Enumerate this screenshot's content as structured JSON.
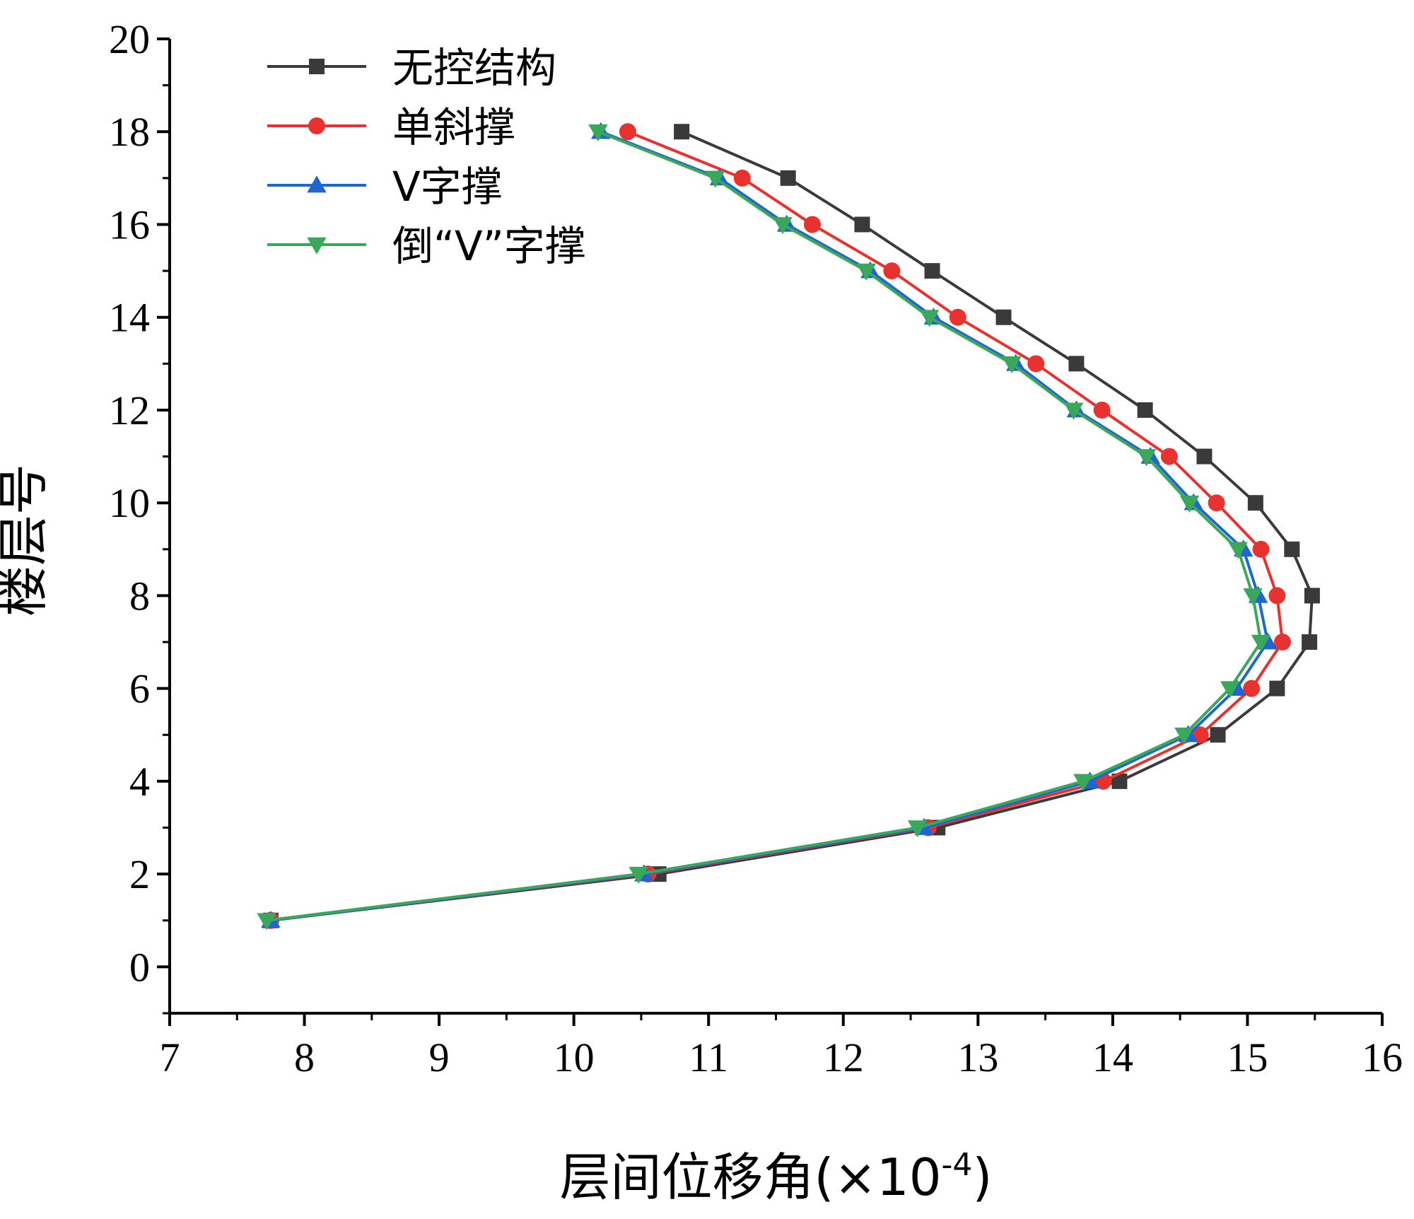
{
  "chart_data": {
    "type": "line",
    "title": "",
    "xlabel": "层间位移角",
    "xlabel_unit": "(×10",
    "xlabel_exp": "-4",
    "xlabel_close": ")",
    "ylabel": "楼层号",
    "xlim": [
      7,
      16
    ],
    "ylim": [
      -1,
      20
    ],
    "xticks": [
      "7",
      "8",
      "9",
      "10",
      "11",
      "12",
      "13",
      "14",
      "15",
      "16"
    ],
    "yticks": [
      "0",
      "2",
      "4",
      "6",
      "8",
      "10",
      "12",
      "14",
      "16",
      "18",
      "20"
    ],
    "legend_position": "top-left",
    "series": [
      {
        "name": "无控结构",
        "color": "#3a3a3a",
        "marker": "square",
        "points": [
          [
            7.75,
            1
          ],
          [
            10.63,
            2
          ],
          [
            12.7,
            3
          ],
          [
            14.05,
            4
          ],
          [
            14.78,
            5
          ],
          [
            15.22,
            6
          ],
          [
            15.46,
            7
          ],
          [
            15.48,
            8
          ],
          [
            15.33,
            9
          ],
          [
            15.06,
            10
          ],
          [
            14.68,
            11
          ],
          [
            14.24,
            12
          ],
          [
            13.73,
            13
          ],
          [
            13.19,
            14
          ],
          [
            12.66,
            15
          ],
          [
            12.14,
            16
          ],
          [
            11.59,
            17
          ],
          [
            10.8,
            18
          ]
        ]
      },
      {
        "name": "单斜撑",
        "color": "#e8322f",
        "marker": "circle",
        "points": [
          [
            7.75,
            1
          ],
          [
            10.55,
            2
          ],
          [
            12.63,
            3
          ],
          [
            13.93,
            4
          ],
          [
            14.65,
            5
          ],
          [
            15.03,
            6
          ],
          [
            15.26,
            7
          ],
          [
            15.22,
            8
          ],
          [
            15.1,
            9
          ],
          [
            14.77,
            10
          ],
          [
            14.42,
            11
          ],
          [
            13.92,
            12
          ],
          [
            13.43,
            13
          ],
          [
            12.85,
            14
          ],
          [
            12.36,
            15
          ],
          [
            11.77,
            16
          ],
          [
            11.25,
            17
          ],
          [
            10.4,
            18
          ]
        ]
      },
      {
        "name": "V字撑",
        "color": "#1f66d1",
        "marker": "triangle-up",
        "points": [
          [
            7.75,
            1
          ],
          [
            10.52,
            2
          ],
          [
            12.6,
            3
          ],
          [
            13.83,
            4
          ],
          [
            14.56,
            5
          ],
          [
            14.92,
            6
          ],
          [
            15.15,
            7
          ],
          [
            15.08,
            8
          ],
          [
            14.97,
            9
          ],
          [
            14.6,
            10
          ],
          [
            14.28,
            11
          ],
          [
            13.73,
            12
          ],
          [
            13.28,
            13
          ],
          [
            12.67,
            14
          ],
          [
            12.2,
            15
          ],
          [
            11.58,
            16
          ],
          [
            11.08,
            17
          ],
          [
            10.2,
            18
          ]
        ]
      },
      {
        "name": "倒“V”字撑",
        "color": "#39a85a",
        "marker": "triangle-down",
        "points": [
          [
            7.72,
            1
          ],
          [
            10.48,
            2
          ],
          [
            12.55,
            3
          ],
          [
            13.78,
            4
          ],
          [
            14.53,
            5
          ],
          [
            14.87,
            6
          ],
          [
            15.1,
            7
          ],
          [
            15.04,
            8
          ],
          [
            14.93,
            9
          ],
          [
            14.57,
            10
          ],
          [
            14.25,
            11
          ],
          [
            13.71,
            12
          ],
          [
            13.25,
            13
          ],
          [
            12.64,
            14
          ],
          [
            12.17,
            15
          ],
          [
            11.55,
            16
          ],
          [
            11.05,
            17
          ],
          [
            10.18,
            18
          ]
        ]
      }
    ]
  }
}
